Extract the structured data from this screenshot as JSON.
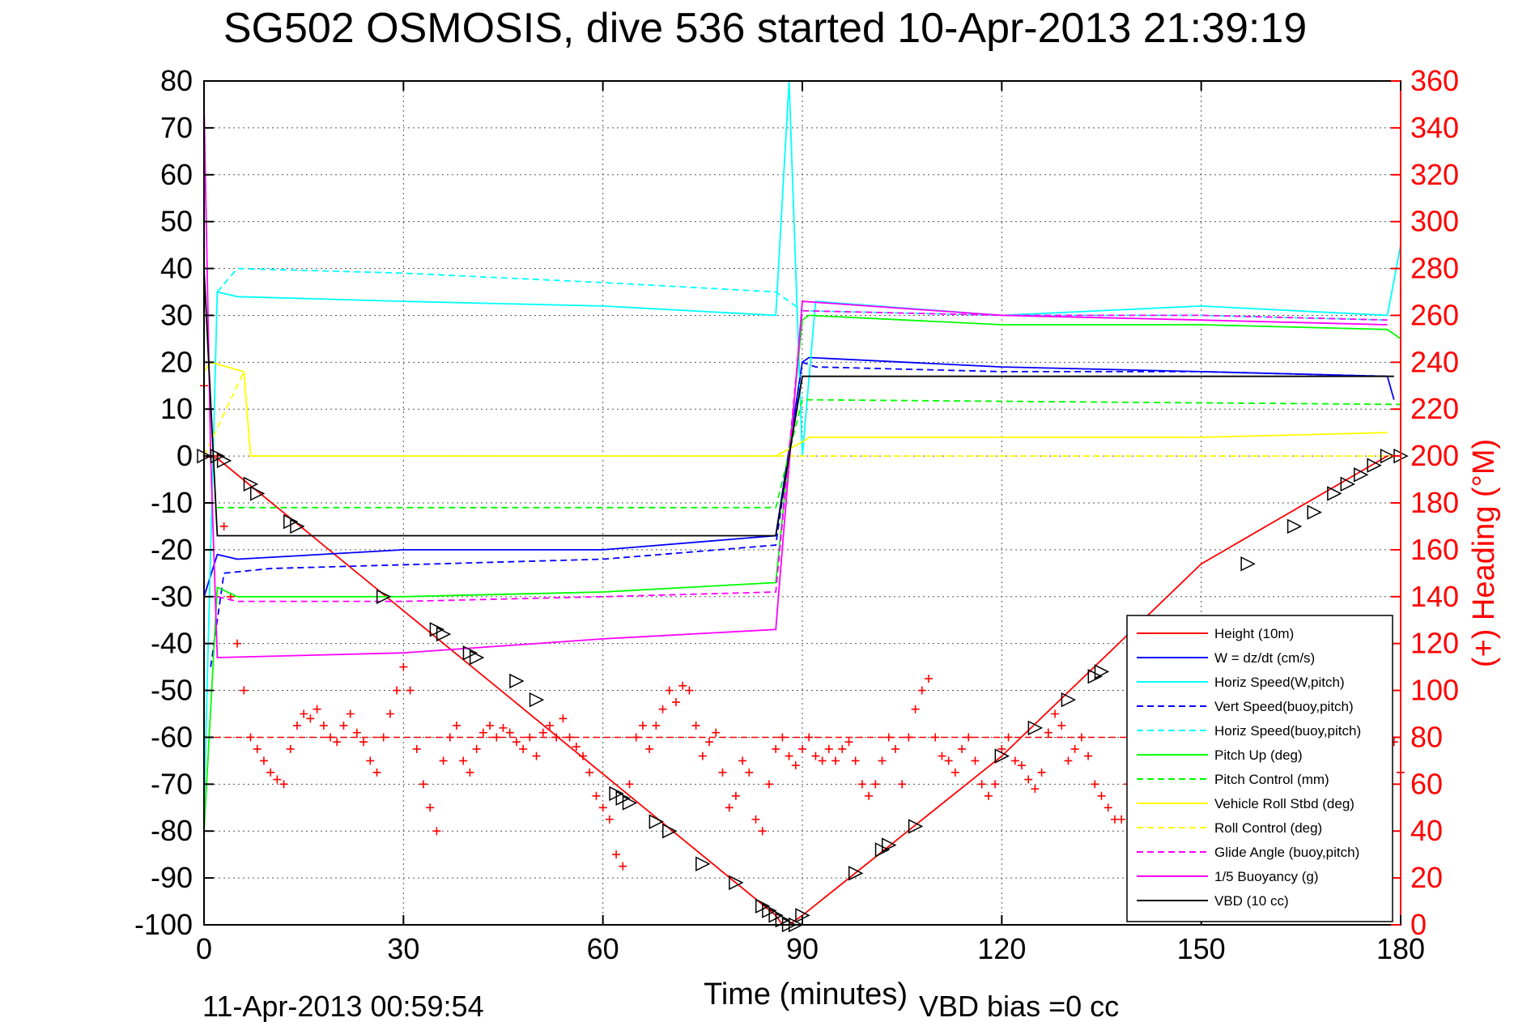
{
  "chart_data": {
    "type": "line",
    "title": "SG502 OSMOSIS, dive 536 started 10-Apr-2013 21:39:19",
    "xlabel": "Time (minutes)",
    "ylabel": "",
    "y2label": "(+) Heading (°M)",
    "footer_left": "11-Apr-2013 00:59:54",
    "footer_right": "VBD bias =0 cc",
    "xlim": [
      0,
      180
    ],
    "ylim": [
      -100,
      80
    ],
    "y2lim": [
      0,
      360
    ],
    "xticks": [
      0,
      30,
      60,
      90,
      120,
      150,
      180
    ],
    "yticks": [
      80,
      70,
      60,
      50,
      40,
      30,
      20,
      10,
      0,
      -10,
      -20,
      -30,
      -40,
      -50,
      -60,
      -70,
      -80,
      -90,
      -100
    ],
    "y2ticks": [
      360,
      340,
      320,
      300,
      280,
      260,
      240,
      220,
      200,
      180,
      160,
      140,
      120,
      100,
      80,
      60,
      40,
      20,
      0
    ],
    "grid": true,
    "legend_position": "bottom-right",
    "colors": {
      "red": "#ff0000",
      "blue": "#0000ff",
      "cyan": "#00ffff",
      "green": "#00ff00",
      "yellow": "#ffff00",
      "magenta": "#ff00ff",
      "black": "#000000"
    },
    "series": [
      {
        "name": "Height (10m)",
        "color": "#ff0000",
        "dash": false,
        "x": [
          0,
          2,
          86,
          87,
          88,
          89,
          90,
          120,
          150,
          178,
          180
        ],
        "y": [
          0,
          -0.5,
          -98,
          -100,
          -100,
          -99,
          -98,
          -64,
          -23,
          0,
          0
        ]
      },
      {
        "name": "W = dz/dt (cm/s)",
        "color": "#0000ff",
        "dash": false,
        "x": [
          0,
          2,
          5,
          30,
          60,
          86,
          90,
          91,
          120,
          150,
          178,
          179
        ],
        "y": [
          -30,
          -21,
          -22,
          -20,
          -20,
          -17,
          20,
          21,
          19,
          18,
          17,
          12
        ]
      },
      {
        "name": "Horiz Speed(W,pitch)",
        "color": "#00ffff",
        "dash": false,
        "x": [
          0,
          2,
          5,
          30,
          60,
          86,
          88,
          90,
          92,
          120,
          150,
          178,
          180
        ],
        "y": [
          -75,
          35,
          34,
          33,
          32,
          30,
          80,
          0,
          33,
          30,
          32,
          30,
          45
        ]
      },
      {
        "name": "Vert Speed(buoy,pitch)",
        "color": "#0000ff",
        "dash": true,
        "x": [
          1,
          3,
          10,
          60,
          86,
          90,
          92,
          120,
          150,
          178
        ],
        "y": [
          -45,
          -25,
          -24,
          -22,
          -19,
          20,
          19,
          18,
          18,
          17
        ]
      },
      {
        "name": "Horiz Speed(buoy,pitch)",
        "color": "#00ffff",
        "dash": true,
        "x": [
          2,
          5,
          30,
          60,
          86,
          90,
          120,
          150,
          178
        ],
        "y": [
          35,
          40,
          39,
          37,
          35,
          31,
          30,
          30,
          29
        ]
      },
      {
        "name": "Pitch Up (deg)",
        "color": "#00ff00",
        "dash": false,
        "x": [
          0,
          2,
          5,
          30,
          60,
          86,
          90,
          91,
          120,
          150,
          178,
          180
        ],
        "y": [
          -80,
          -28,
          -30,
          -30,
          -29,
          -27,
          29,
          30,
          28,
          28,
          27,
          25
        ]
      },
      {
        "name": "Pitch Control (mm)",
        "color": "#00ff00",
        "dash": true,
        "x": [
          2,
          86,
          90,
          180
        ],
        "y": [
          -11,
          -11,
          12,
          11
        ]
      },
      {
        "name": "Vehicle Roll Stbd (deg)",
        "color": "#ffff00",
        "dash": false,
        "x": [
          0,
          1,
          6,
          7,
          30,
          60,
          86,
          90,
          91,
          120,
          150,
          178
        ],
        "y": [
          18,
          20,
          18,
          0,
          0,
          0,
          0,
          3,
          4,
          4,
          4,
          5
        ]
      },
      {
        "name": "Roll Control (deg)",
        "color": "#ffff00",
        "dash": true,
        "x": [
          0,
          6,
          7,
          86,
          90,
          180
        ],
        "y": [
          0,
          18,
          0,
          0,
          0,
          0
        ]
      },
      {
        "name": "Glide Angle (buoy,pitch)",
        "color": "#ff00ff",
        "dash": true,
        "x": [
          2,
          5,
          30,
          60,
          86,
          90,
          120,
          150,
          178
        ],
        "y": [
          -30,
          -31,
          -31,
          -30,
          -29,
          31,
          30,
          30,
          29
        ]
      },
      {
        "name": "1/5 Buoyancy (g)",
        "color": "#ff00ff",
        "dash": false,
        "x": [
          0,
          1,
          2,
          30,
          60,
          86,
          90,
          120,
          150,
          178
        ],
        "y": [
          75,
          0,
          -43,
          -42,
          -39,
          -37,
          33,
          30,
          29,
          28
        ]
      },
      {
        "name": "VBD (10 cc)",
        "color": "#000000",
        "dash": false,
        "x": [
          0,
          2,
          86,
          90,
          91,
          178,
          179
        ],
        "y": [
          40,
          -17,
          -17,
          17,
          17,
          17,
          17
        ]
      }
    ],
    "heading_series": {
      "name": "(+) Heading",
      "axis": "right",
      "color": "#ff0000",
      "x": [
        0,
        1,
        2,
        3,
        4,
        5,
        6,
        7,
        8,
        9,
        10,
        11,
        12,
        13,
        14,
        15,
        16,
        17,
        18,
        19,
        20,
        21,
        22,
        23,
        24,
        25,
        26,
        27,
        28,
        29,
        30,
        31,
        32,
        33,
        34,
        35,
        36,
        37,
        38,
        39,
        40,
        41,
        42,
        43,
        44,
        45,
        46,
        47,
        48,
        49,
        50,
        51,
        52,
        53,
        54,
        55,
        56,
        57,
        58,
        59,
        60,
        61,
        62,
        63,
        64,
        65,
        66,
        67,
        68,
        69,
        70,
        71,
        72,
        73,
        74,
        75,
        76,
        77,
        78,
        79,
        80,
        81,
        82,
        83,
        84,
        85,
        86,
        87,
        88,
        89,
        90,
        91,
        92,
        93,
        94,
        95,
        96,
        97,
        98,
        99,
        100,
        101,
        102,
        103,
        104,
        105,
        106,
        107,
        108,
        109,
        110,
        111,
        112,
        113,
        114,
        115,
        116,
        117,
        118,
        119,
        120,
        121,
        122,
        123,
        124,
        125,
        126,
        127,
        128,
        129,
        130,
        131,
        132,
        133,
        134,
        135,
        136,
        137,
        138,
        139,
        140,
        141,
        142,
        143,
        144,
        145,
        146,
        147,
        148,
        149,
        150,
        151,
        152,
        153,
        154,
        155,
        156,
        157,
        158,
        159,
        160,
        161,
        162,
        163,
        164,
        165,
        166,
        167,
        168,
        169,
        170,
        171,
        172,
        173,
        174,
        175,
        176,
        177,
        178,
        179,
        180
      ],
      "y": [
        230,
        220,
        200,
        170,
        140,
        120,
        100,
        80,
        75,
        70,
        65,
        62,
        60,
        75,
        85,
        90,
        88,
        92,
        85,
        80,
        78,
        85,
        90,
        82,
        78,
        70,
        65,
        80,
        90,
        100,
        110,
        100,
        75,
        60,
        50,
        40,
        70,
        80,
        85,
        70,
        65,
        75,
        82,
        85,
        80,
        84,
        82,
        78,
        75,
        80,
        72,
        82,
        85,
        80,
        88,
        80,
        76,
        72,
        65,
        55,
        50,
        45,
        30,
        25,
        60,
        80,
        85,
        75,
        85,
        92,
        100,
        95,
        102,
        100,
        85,
        72,
        78,
        82,
        65,
        50,
        55,
        70,
        65,
        45,
        40,
        60,
        75,
        80,
        72,
        68,
        75,
        80,
        72,
        70,
        75,
        70,
        75,
        78,
        70,
        60,
        55,
        60,
        70,
        80,
        75,
        60,
        80,
        92,
        100,
        105,
        80,
        72,
        70,
        65,
        75,
        80,
        70,
        60,
        55,
        60,
        75,
        80,
        70,
        68,
        62,
        58,
        65,
        82,
        90,
        85,
        70,
        75,
        80,
        72,
        60,
        55,
        50,
        45,
        45,
        60,
        70,
        75,
        75,
        80,
        70,
        60,
        50,
        55,
        65,
        85,
        75,
        70,
        80,
        72,
        65,
        60,
        62,
        55,
        48,
        45,
        40,
        52,
        60,
        75,
        80,
        85,
        78,
        72,
        70,
        65,
        70,
        60,
        65,
        70,
        75,
        80,
        70,
        75,
        82,
        78,
        65
      ]
    },
    "heading_mean": 80,
    "markers": {
      "type": "triangle",
      "x": [
        0,
        2,
        3,
        7,
        8,
        13,
        14,
        27,
        35,
        36,
        40,
        41,
        47,
        50,
        62,
        63,
        64,
        68,
        70,
        75,
        80,
        84,
        85,
        86,
        87,
        88,
        89,
        90,
        98,
        102,
        103,
        107,
        120,
        125,
        130,
        134,
        135,
        157,
        164,
        167,
        170,
        172,
        174,
        176,
        178,
        180
      ],
      "y": [
        0,
        0,
        -1,
        -6,
        -8,
        -14,
        -15,
        -30,
        -37,
        -38,
        -42,
        -43,
        -48,
        -52,
        -72,
        -73,
        -74,
        -78,
        -80,
        -87,
        -91,
        -96,
        -97,
        -98,
        -99,
        -100,
        -100,
        -98,
        -89,
        -84,
        -83,
        -79,
        -64,
        -58,
        -52,
        -47,
        -46,
        -23,
        -15,
        -12,
        -8,
        -6,
        -4,
        -2,
        0,
        0
      ]
    }
  }
}
